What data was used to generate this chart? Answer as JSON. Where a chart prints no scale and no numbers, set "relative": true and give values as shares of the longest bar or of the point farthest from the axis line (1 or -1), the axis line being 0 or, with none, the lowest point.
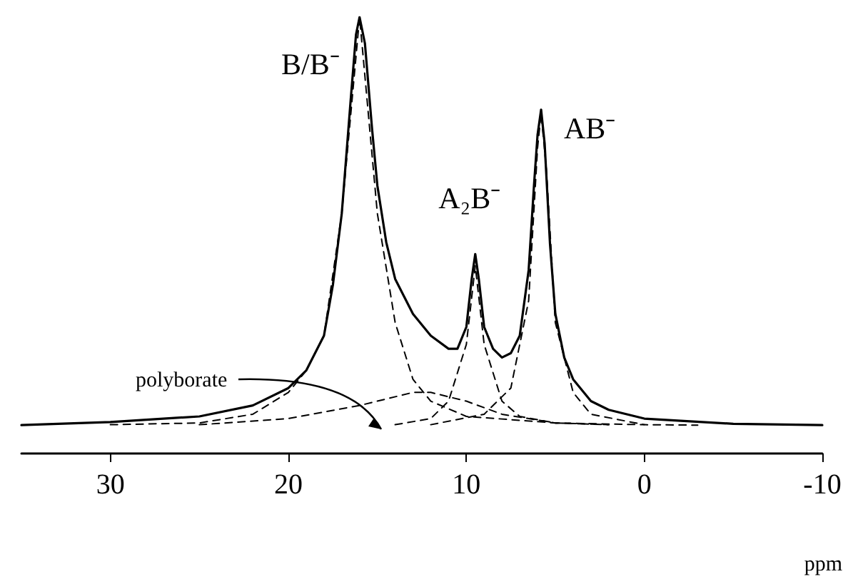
{
  "chart_data": {
    "type": "line",
    "relative": true,
    "xlabel": "ppm",
    "xlim": [
      35,
      -10
    ],
    "xticks": [
      30,
      20,
      10,
      0,
      -10
    ],
    "grid": false,
    "marker": "none",
    "annotations": [
      {
        "text": "B/B⁻",
        "x": 16,
        "y": 1.0
      },
      {
        "text": "A₂B⁻",
        "x": 9.5,
        "y": 0.457
      },
      {
        "text": "AB⁻",
        "x": 5.8,
        "y": 0.788
      },
      "polyborate"
    ],
    "series": [
      {
        "color": "#000000",
        "line_style": "solid",
        "x": [
          35,
          30,
          25,
          22,
          20,
          19,
          18,
          17.5,
          17,
          16.5,
          16.2,
          16,
          15.7,
          15.3,
          15,
          14.5,
          14,
          13,
          12,
          11,
          10.5,
          10,
          9.7,
          9.5,
          9.3,
          9,
          8.5,
          8,
          7.5,
          7,
          6.5,
          6.2,
          6,
          5.8,
          5.6,
          5.3,
          5,
          4.5,
          4,
          3,
          2,
          0,
          -5,
          -10
        ],
        "values": [
          0.065,
          0.072,
          0.085,
          0.11,
          0.15,
          0.19,
          0.27,
          0.386,
          0.55,
          0.81,
          0.96,
          1.0,
          0.94,
          0.745,
          0.614,
          0.484,
          0.4,
          0.32,
          0.27,
          0.24,
          0.24,
          0.29,
          0.4,
          0.457,
          0.4,
          0.29,
          0.24,
          0.22,
          0.23,
          0.27,
          0.42,
          0.614,
          0.73,
          0.788,
          0.71,
          0.48,
          0.32,
          0.22,
          0.17,
          0.12,
          0.1,
          0.08,
          0.068,
          0.065
        ]
      },
      {
        "color": "#000000",
        "line_style": "dashed",
        "x": [
          30,
          25,
          22,
          20,
          19,
          18,
          17,
          16,
          15,
          14,
          13,
          12,
          10,
          5,
          0,
          -3
        ],
        "values": [
          0.066,
          0.07,
          0.09,
          0.14,
          0.19,
          0.27,
          0.55,
          1.0,
          0.55,
          0.3,
          0.17,
          0.12,
          0.085,
          0.07,
          0.066,
          0.065
        ]
      },
      {
        "color": "#000000",
        "line_style": "dashed",
        "x": [
          25,
          20,
          16,
          13,
          12,
          10,
          8,
          5,
          2
        ],
        "values": [
          0.066,
          0.08,
          0.11,
          0.14,
          0.14,
          0.12,
          0.09,
          0.07,
          0.066
        ]
      },
      {
        "color": "#000000",
        "line_style": "dashed",
        "x": [
          14,
          12,
          11,
          10,
          9.5,
          9,
          8,
          7,
          5,
          2
        ],
        "values": [
          0.066,
          0.08,
          0.12,
          0.25,
          0.43,
          0.25,
          0.12,
          0.085,
          0.07,
          0.066
        ]
      },
      {
        "color": "#000000",
        "line_style": "dashed",
        "x": [
          12,
          9,
          7.5,
          6.5,
          6,
          5.8,
          5.5,
          5,
          4,
          3,
          0
        ],
        "values": [
          0.066,
          0.09,
          0.15,
          0.35,
          0.7,
          0.78,
          0.65,
          0.3,
          0.14,
          0.09,
          0.066
        ]
      }
    ]
  }
}
